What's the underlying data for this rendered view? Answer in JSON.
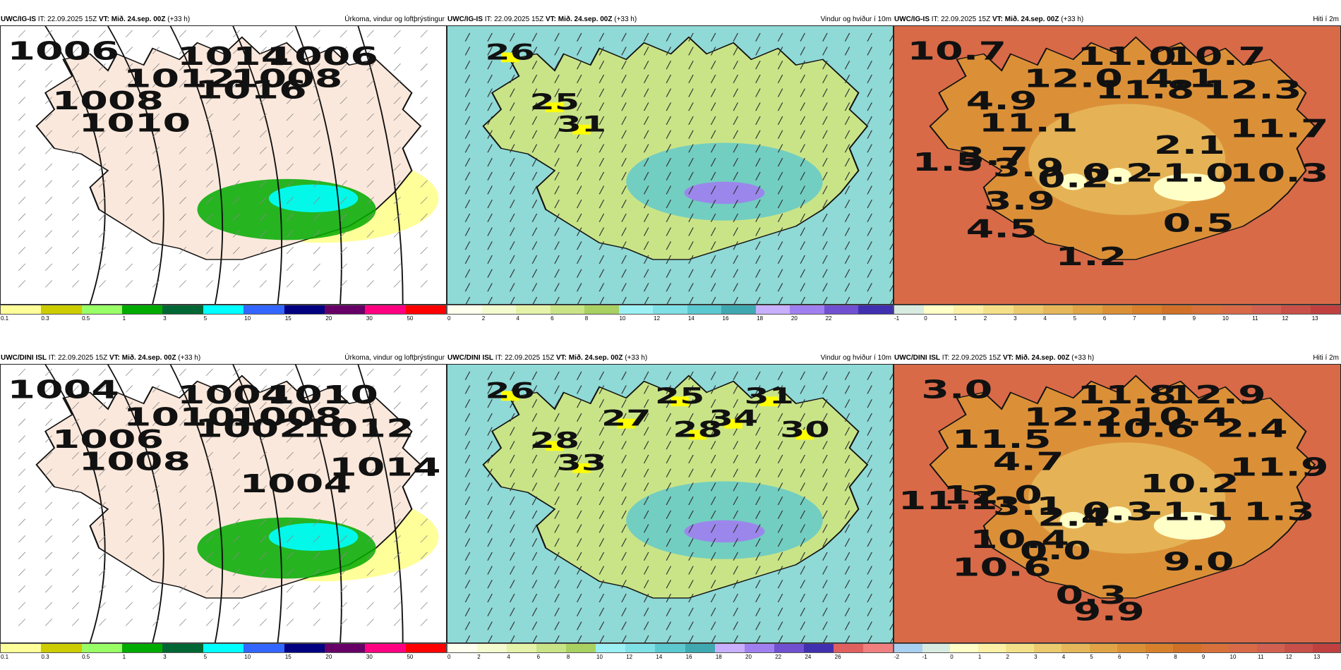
{
  "panels": [
    {
      "key": "p1",
      "model": "UWC/IG-IS",
      "it_label": "IT:",
      "it_value": "22.09.2025 15Z",
      "vt_label": "VT:",
      "vt_value": "Mið. 24.sep. 00Z",
      "lead": "(+33 h)",
      "product": "Úrkoma, vindur og loftþrýstingur",
      "type": "precip",
      "isobar_labels": [
        "1006",
        "1008",
        "1010",
        "1012",
        "1014",
        "1016",
        "1008",
        "1006"
      ],
      "colors": [
        "#ffff99",
        "#cccc00",
        "#99ff66",
        "#00aa00",
        "#006633",
        "#00ffff",
        "#3366ff",
        "#000080",
        "#660066",
        "#ff0080",
        "#ff0000"
      ],
      "ticks": [
        "0.1",
        "0.3",
        "0.5",
        "1",
        "3",
        "5",
        "10",
        "15",
        "20",
        "30",
        "50"
      ]
    },
    {
      "key": "p2",
      "model": "UWC/IG-IS",
      "it_label": "IT:",
      "it_value": "22.09.2025 15Z",
      "vt_label": "VT:",
      "vt_value": "Mið. 24.sep. 00Z",
      "lead": "(+33 h)",
      "product": "Vindur og hviður í 10m",
      "type": "wind",
      "max_labels": [
        "26",
        "25",
        "31"
      ],
      "colors": [
        "#ffffee",
        "#f4fbcf",
        "#e4f3a9",
        "#c9e487",
        "#a8d162",
        "#9cf0f4",
        "#7fe0e6",
        "#5cc8d0",
        "#3fa8b0",
        "#c8b0ff",
        "#a080f0",
        "#7050d0",
        "#4030b0"
      ],
      "ticks": [
        "0",
        "2",
        "4",
        "6",
        "8",
        "10",
        "12",
        "14",
        "16",
        "18",
        "20",
        "22",
        ""
      ]
    },
    {
      "key": "p3",
      "model": "UWC/IG-IS",
      "it_label": "IT:",
      "it_value": "22.09.2025 15Z",
      "vt_label": "VT:",
      "vt_value": "Mið. 24.sep. 00Z",
      "lead": "(+33 h)",
      "product": "Hiti í 2m",
      "type": "temp",
      "temp_labels": [
        "10.7",
        "4.9",
        "11.1",
        "12.0",
        "11.0",
        "11.8",
        "4.1",
        "10.7",
        "12.3",
        "11.7",
        "2.1",
        "3.7",
        "3.9",
        "1.5",
        "0.2",
        "0.2",
        "-1.0",
        "10.3",
        "3.9",
        "4.5",
        "0.5",
        "1.2"
      ],
      "colors": [
        "#d8ebe0",
        "#ffffc8",
        "#fbf0a6",
        "#f5e08a",
        "#ecca6e",
        "#e6b75a",
        "#e0a446",
        "#db9038",
        "#d8802c",
        "#d07029",
        "#d8703a",
        "#d86a48",
        "#d26050",
        "#c85048",
        "#c04040"
      ],
      "ticks": [
        "-1",
        "0",
        "1",
        "2",
        "3",
        "4",
        "5",
        "6",
        "7",
        "8",
        "9",
        "10",
        "11",
        "12",
        "13"
      ]
    },
    {
      "key": "p4",
      "model": "UWC/DINI ISL",
      "it_label": "IT:",
      "it_value": "22.09.2025 15Z",
      "vt_label": "VT:",
      "vt_value": "Mið. 24.sep. 00Z",
      "lead": "(+33 h)",
      "product": "Úrkoma, vindur og loftþrýstingur",
      "type": "precip",
      "isobar_labels": [
        "1004",
        "1006",
        "1008",
        "1010",
        "1004",
        "1002",
        "1008",
        "1010",
        "1012",
        "1014",
        "1004"
      ],
      "colors": [
        "#ffff99",
        "#cccc00",
        "#99ff66",
        "#00aa00",
        "#006633",
        "#00ffff",
        "#3366ff",
        "#000080",
        "#660066",
        "#ff0080",
        "#ff0000"
      ],
      "ticks": [
        "0.1",
        "0.3",
        "0.5",
        "1",
        "3",
        "5",
        "10",
        "15",
        "20",
        "30",
        "50"
      ]
    },
    {
      "key": "p5",
      "model": "UWC/DINI ISL",
      "it_label": "IT:",
      "it_value": "22.09.2025 15Z",
      "vt_label": "VT:",
      "vt_value": "Mið. 24.sep. 00Z",
      "lead": "(+33 h)",
      "product": "Vindur og hviður í 10m",
      "type": "wind",
      "max_labels": [
        "26",
        "28",
        "33",
        "27",
        "25",
        "28",
        "34",
        "31",
        "30"
      ],
      "colors": [
        "#ffffee",
        "#f4fbcf",
        "#e4f3a9",
        "#c9e487",
        "#a8d162",
        "#9cf0f4",
        "#7fe0e6",
        "#5cc8d0",
        "#3fa8b0",
        "#c8b0ff",
        "#a080f0",
        "#7050d0",
        "#4030b0",
        "#e06060",
        "#f08080"
      ],
      "ticks": [
        "0",
        "2",
        "4",
        "6",
        "8",
        "10",
        "12",
        "14",
        "16",
        "18",
        "20",
        "22",
        "24",
        "26",
        ""
      ]
    },
    {
      "key": "p6",
      "model": "UWC/DINI ISL",
      "it_label": "IT:",
      "it_value": "22.09.2025 15Z",
      "vt_label": "VT:",
      "vt_value": "Mið. 24.sep. 00Z",
      "lead": "(+33 h)",
      "product": "Hiti í 2m",
      "type": "temp",
      "temp_labels": [
        "3.0",
        "11.5",
        "4.7",
        "12.2",
        "11.8",
        "10.6",
        "10.4",
        "12.9",
        "2.4",
        "11.9",
        "10.2",
        "12.0",
        "3.1",
        "11.1",
        "2.4",
        "0.3",
        "-1.1",
        "1.3",
        "10.4",
        "10.6",
        "9.0",
        "0.3",
        "0.0",
        "9.9"
      ],
      "colors": [
        "#a8d0f0",
        "#d8ebe0",
        "#ffffc8",
        "#fbf0a6",
        "#f5e08a",
        "#ecca6e",
        "#e6b75a",
        "#e0a446",
        "#db9038",
        "#d8802c",
        "#d07029",
        "#d8703a",
        "#d86a48",
        "#d26050",
        "#c85048",
        "#c04040"
      ],
      "ticks": [
        "-2",
        "-1",
        "0",
        "1",
        "2",
        "3",
        "4",
        "5",
        "6",
        "7",
        "8",
        "9",
        "10",
        "11",
        "12",
        "13"
      ]
    }
  ]
}
